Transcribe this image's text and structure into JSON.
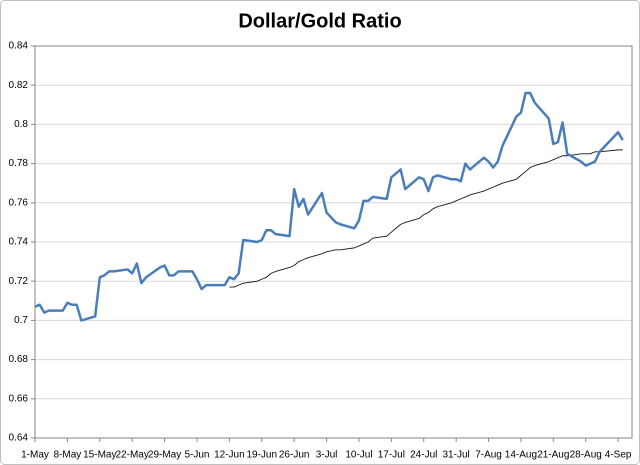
{
  "chart_data": {
    "type": "line",
    "title": "Dollar/Gold Ratio",
    "x": [
      "1-May",
      "2-May",
      "3-May",
      "4-May",
      "7-May",
      "8-May",
      "9-May",
      "10-May",
      "11-May",
      "14-May",
      "15-May",
      "16-May",
      "17-May",
      "18-May",
      "21-May",
      "22-May",
      "23-May",
      "24-May",
      "25-May",
      "28-May",
      "29-May",
      "30-May",
      "31-May",
      "1-Jun",
      "4-Jun",
      "5-Jun",
      "6-Jun",
      "7-Jun",
      "8-Jun",
      "11-Jun",
      "12-Jun",
      "13-Jun",
      "14-Jun",
      "15-Jun",
      "18-Jun",
      "19-Jun",
      "20-Jun",
      "21-Jun",
      "22-Jun",
      "25-Jun",
      "26-Jun",
      "27-Jun",
      "28-Jun",
      "29-Jun",
      "2-Jul",
      "3-Jul",
      "5-Jul",
      "6-Jul",
      "9-Jul",
      "10-Jul",
      "11-Jul",
      "12-Jul",
      "13-Jul",
      "16-Jul",
      "17-Jul",
      "18-Jul",
      "19-Jul",
      "20-Jul",
      "23-Jul",
      "24-Jul",
      "25-Jul",
      "26-Jul",
      "27-Jul",
      "30-Jul",
      "31-Jul",
      "1-Aug",
      "2-Aug",
      "3-Aug",
      "6-Aug",
      "7-Aug",
      "8-Aug",
      "9-Aug",
      "10-Aug",
      "13-Aug",
      "14-Aug",
      "15-Aug",
      "16-Aug",
      "17-Aug",
      "20-Aug",
      "21-Aug",
      "22-Aug",
      "23-Aug",
      "24-Aug",
      "27-Aug",
      "28-Aug",
      "29-Aug",
      "30-Aug",
      "31-Aug",
      "4-Sep",
      "5-Sep"
    ],
    "series": [
      {
        "color": "#4a7ebb",
        "values": [
          0.707,
          0.708,
          0.704,
          0.705,
          0.705,
          0.709,
          0.708,
          0.708,
          0.7,
          0.702,
          0.722,
          0.723,
          0.725,
          0.725,
          0.726,
          0.724,
          0.729,
          0.719,
          0.722,
          0.727,
          0.728,
          0.723,
          0.723,
          0.725,
          0.725,
          0.721,
          0.716,
          0.718,
          0.718,
          0.718,
          0.722,
          0.721,
          0.724,
          0.741,
          0.74,
          0.741,
          0.746,
          0.746,
          0.744,
          0.743,
          0.767,
          0.758,
          0.762,
          0.754,
          0.765,
          0.755,
          0.75,
          0.749,
          0.747,
          0.751,
          0.761,
          0.761,
          0.763,
          0.762,
          0.773,
          0.775,
          0.777,
          0.767,
          0.773,
          0.772,
          0.766,
          0.773,
          0.774,
          0.772,
          0.772,
          0.771,
          0.78,
          0.777,
          0.783,
          0.781,
          0.778,
          0.781,
          0.789,
          0.804,
          0.806,
          0.816,
          0.816,
          0.811,
          0.803,
          0.79,
          0.791,
          0.801,
          0.785,
          0.781,
          0.779,
          0.78,
          0.781,
          0.786,
          0.796,
          0.792
        ]
      },
      {
        "color": "#1a1a1a",
        "values": [
          null,
          null,
          null,
          null,
          null,
          null,
          null,
          null,
          null,
          null,
          null,
          null,
          null,
          null,
          null,
          null,
          null,
          null,
          null,
          null,
          null,
          null,
          null,
          null,
          null,
          null,
          null,
          null,
          null,
          null,
          0.717,
          0.717,
          0.718,
          0.719,
          0.72,
          0.721,
          0.722,
          0.724,
          0.725,
          0.727,
          0.728,
          0.73,
          0.731,
          0.732,
          0.734,
          0.735,
          0.736,
          0.736,
          0.737,
          0.738,
          0.739,
          0.74,
          0.742,
          0.743,
          0.745,
          0.747,
          0.749,
          0.75,
          0.752,
          0.754,
          0.755,
          0.757,
          0.758,
          0.76,
          0.761,
          0.762,
          0.763,
          0.764,
          0.766,
          0.767,
          0.768,
          0.769,
          0.77,
          0.772,
          0.774,
          0.776,
          0.778,
          0.779,
          0.781,
          0.782,
          0.783,
          0.784,
          0.784,
          0.785,
          0.785,
          0.785,
          0.786,
          0.786,
          0.787,
          0.787
        ]
      }
    ],
    "xlim": [
      "1-May",
      "7-Sep"
    ],
    "xticks": [
      "1-May",
      "8-May",
      "15-May",
      "22-May",
      "29-May",
      "5-Jun",
      "12-Jun",
      "19-Jun",
      "26-Jun",
      "3-Jul",
      "10-Jul",
      "17-Jul",
      "24-Jul",
      "31-Jul",
      "7-Aug",
      "14-Aug",
      "21-Aug",
      "28-Aug",
      "4-Sep"
    ],
    "ylim": [
      0.64,
      0.84
    ],
    "yticks": [
      0.64,
      0.66,
      0.68,
      0.7,
      0.72,
      0.74,
      0.76,
      0.78,
      0.8,
      0.82,
      0.84
    ],
    "grid": true
  }
}
